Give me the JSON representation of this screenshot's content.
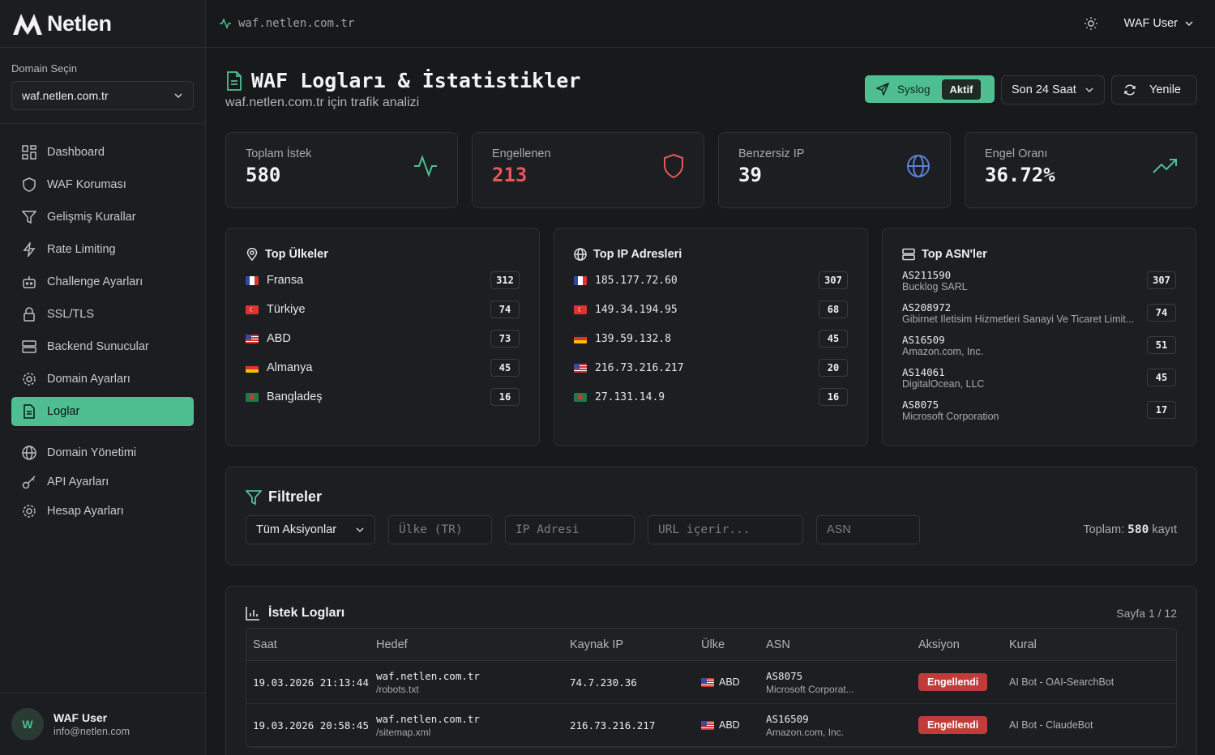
{
  "brand": {
    "name": "Netlen"
  },
  "sidebar": {
    "domain_label": "Domain Seçin",
    "domain_value": "waf.netlen.com.tr",
    "items": [
      {
        "label": "Dashboard",
        "icon": "grid-icon"
      },
      {
        "label": "WAF Koruması",
        "icon": "shield-icon"
      },
      {
        "label": "Gelişmiş Kurallar",
        "icon": "filter-icon"
      },
      {
        "label": "Rate Limiting",
        "icon": "bolt-icon"
      },
      {
        "label": "Challenge Ayarları",
        "icon": "bot-icon"
      },
      {
        "label": "SSL/TLS",
        "icon": "lock-icon"
      },
      {
        "label": "Backend Sunucular",
        "icon": "server-icon"
      },
      {
        "label": "Domain Ayarları",
        "icon": "gear-icon"
      },
      {
        "label": "Loglar",
        "icon": "document-icon",
        "active": true
      }
    ],
    "items2": [
      {
        "label": "Domain Yönetimi",
        "icon": "globe-icon"
      },
      {
        "label": "API Ayarları",
        "icon": "key-icon"
      },
      {
        "label": "Hesap Ayarları",
        "icon": "gear-icon"
      }
    ],
    "user": {
      "initial": "W",
      "name": "WAF User",
      "email": "info@netlen.com"
    }
  },
  "topbar": {
    "url": "waf.netlen.com.tr",
    "user": "WAF User"
  },
  "page": {
    "title": "WAF Logları & İstatistikler",
    "subtitle": "waf.netlen.com.tr için trafik analizi",
    "syslog_label": "Syslog",
    "syslog_status": "Aktif",
    "range": "Son 24 Saat",
    "refresh": "Yenile"
  },
  "stats": [
    {
      "label": "Toplam İstek",
      "value": "580"
    },
    {
      "label": "Engellenen",
      "value": "213"
    },
    {
      "label": "Benzersiz IP",
      "value": "39"
    },
    {
      "label": "Engel Oranı",
      "value": "36.72%"
    }
  ],
  "top_countries": {
    "title": "Top Ülkeler",
    "rows": [
      {
        "name": "Fransa",
        "count": "312"
      },
      {
        "name": "Türkiye",
        "count": "74"
      },
      {
        "name": "ABD",
        "count": "73"
      },
      {
        "name": "Almanya",
        "count": "45"
      },
      {
        "name": "Bangladeş",
        "count": "16"
      }
    ]
  },
  "top_ips": {
    "title": "Top IP Adresleri",
    "rows": [
      {
        "ip": "185.177.72.60",
        "count": "307"
      },
      {
        "ip": "149.34.194.95",
        "count": "68"
      },
      {
        "ip": "139.59.132.8",
        "count": "45"
      },
      {
        "ip": "216.73.216.217",
        "count": "20"
      },
      {
        "ip": "27.131.14.9",
        "count": "16"
      }
    ]
  },
  "top_asns": {
    "title": "Top ASN'ler",
    "rows": [
      {
        "asn": "AS211590",
        "org": "Bucklog SARL",
        "count": "307"
      },
      {
        "asn": "AS208972",
        "org": "Gibirnet Iletisim Hizmetleri Sanayi Ve Ticaret Limit...",
        "count": "74"
      },
      {
        "asn": "AS16509",
        "org": "Amazon.com, Inc.",
        "count": "51"
      },
      {
        "asn": "AS14061",
        "org": "DigitalOcean, LLC",
        "count": "45"
      },
      {
        "asn": "AS8075",
        "org": "Microsoft Corporation",
        "count": "17"
      }
    ]
  },
  "filters": {
    "title": "Filtreler",
    "action_select": "Tüm Aksiyonlar",
    "country_placeholder": "Ülke (TR)",
    "ip_placeholder": "IP Adresi",
    "url_placeholder": "URL içerir...",
    "asn_placeholder": "ASN",
    "total_prefix": "Toplam:",
    "total_value": "580",
    "total_suffix": "kayıt"
  },
  "logs": {
    "title": "İstek Logları",
    "page": "Sayfa 1 / 12",
    "columns": [
      "Saat",
      "Hedef",
      "Kaynak IP",
      "Ülke",
      "ASN",
      "Aksiyon",
      "Kural"
    ],
    "rows": [
      {
        "time": "19.03.2026 21:13:44",
        "host": "waf.netlen.com.tr",
        "path": "/robots.txt",
        "ip": "74.7.230.36",
        "country": "ABD",
        "asn": "AS8075",
        "asn_org": "Microsoft Corporat...",
        "action": "Engellendi",
        "rule": "AI Bot - OAI-SearchBot"
      },
      {
        "time": "19.03.2026 20:58:45",
        "host": "waf.netlen.com.tr",
        "path": "/sitemap.xml",
        "ip": "216.73.216.217",
        "country": "ABD",
        "asn": "AS16509",
        "asn_org": "Amazon.com, Inc.",
        "action": "Engellendi",
        "rule": "AI Bot - ClaudeBot"
      }
    ]
  },
  "colors": {
    "accent": "#4fbf92",
    "danger": "#c13b3b",
    "red_value": "#e5575b",
    "background": "#18191b"
  }
}
